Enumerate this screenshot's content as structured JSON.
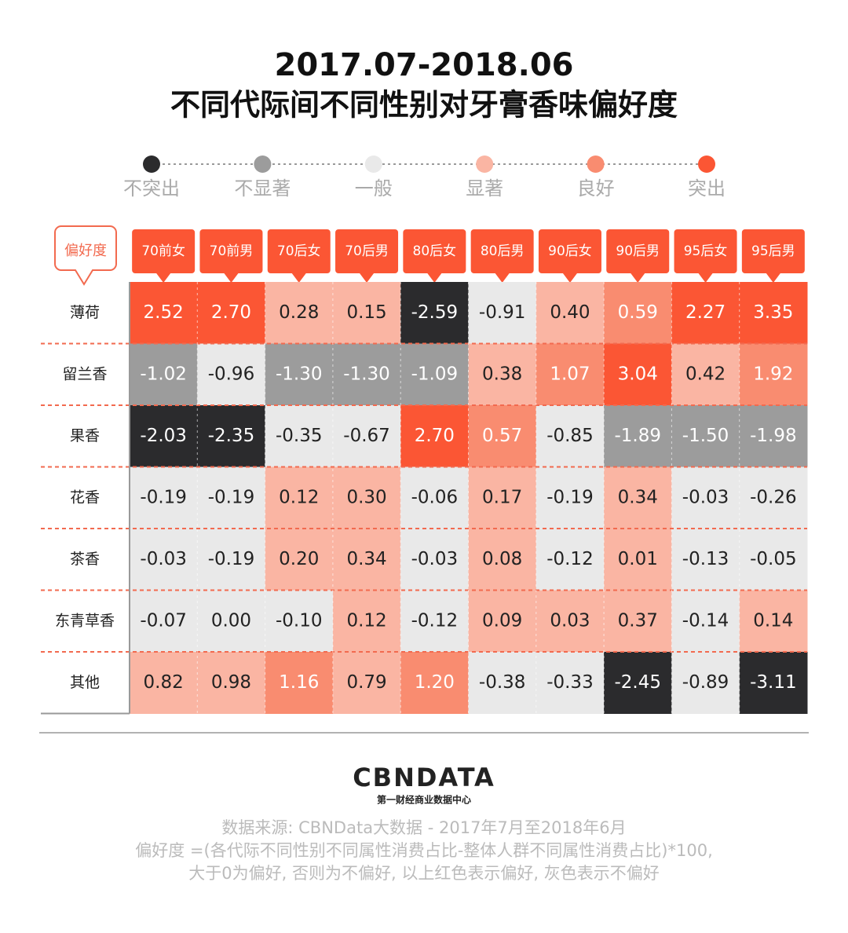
{
  "header": {
    "title_line1": "2017.07-2018.06",
    "title_line2": "不同代际间不同性别对牙膏香味偏好度"
  },
  "legend": [
    {
      "name": "不突出",
      "color": "#2b2b2d",
      "text_color": "#ffffff"
    },
    {
      "name": "不显著",
      "color": "#9c9c9c",
      "text_color": "#ffffff"
    },
    {
      "name": "一般",
      "color": "#e9e9e9",
      "text_color": "#222222"
    },
    {
      "name": "显著",
      "color": "#fab5a3",
      "text_color": "#222222"
    },
    {
      "name": "良好",
      "color": "#f98c70",
      "text_color": "#ffffff"
    },
    {
      "name": "突出",
      "color": "#fb5634",
      "text_color": "#ffffff"
    }
  ],
  "table": {
    "corner": "偏好度",
    "columns": [
      "70前女",
      "70前男",
      "70后女",
      "70后男",
      "80后女",
      "80后男",
      "90后女",
      "90后男",
      "95后女",
      "95后男"
    ],
    "rows": [
      {
        "label": "薄荷",
        "cells": [
          "2.52",
          "2.70",
          "0.28",
          "0.15",
          "-2.59",
          "-0.91",
          "0.40",
          "0.59",
          "2.27",
          "3.35"
        ],
        "colors": [
          "#fb5634",
          "#fb5634",
          "#fab5a3",
          "#fab5a3",
          "#2b2b2d",
          "#e9e9e9",
          "#fab5a3",
          "#f98c70",
          "#fb5634",
          "#fb5634"
        ]
      },
      {
        "label": "留兰香",
        "cells": [
          "-1.02",
          "-0.96",
          "-1.30",
          "-1.30",
          "-1.09",
          "0.38",
          "1.07",
          "3.04",
          "0.42",
          "1.92"
        ],
        "colors": [
          "#9c9c9c",
          "#e9e9e9",
          "#9c9c9c",
          "#9c9c9c",
          "#9c9c9c",
          "#fab5a3",
          "#f98c70",
          "#fb5634",
          "#fab5a3",
          "#f98c70"
        ]
      },
      {
        "label": "果香",
        "cells": [
          "-2.03",
          "-2.35",
          "-0.35",
          "-0.67",
          "2.70",
          "0.57",
          "-0.85",
          "-1.89",
          "-1.50",
          "-1.98"
        ],
        "colors": [
          "#2b2b2d",
          "#2b2b2d",
          "#e9e9e9",
          "#e9e9e9",
          "#fb5634",
          "#f98c70",
          "#e9e9e9",
          "#9c9c9c",
          "#9c9c9c",
          "#9c9c9c"
        ]
      },
      {
        "label": "花香",
        "cells": [
          "-0.19",
          "-0.19",
          "0.12",
          "0.30",
          "-0.06",
          "0.17",
          "-0.19",
          "0.34",
          "-0.03",
          "-0.26"
        ],
        "colors": [
          "#e9e9e9",
          "#e9e9e9",
          "#fab5a3",
          "#fab5a3",
          "#e9e9e9",
          "#fab5a3",
          "#e9e9e9",
          "#fab5a3",
          "#e9e9e9",
          "#e9e9e9"
        ]
      },
      {
        "label": "茶香",
        "cells": [
          "-0.03",
          "-0.19",
          "0.20",
          "0.34",
          "-0.03",
          "0.08",
          "-0.12",
          "0.01",
          "-0.13",
          "-0.05"
        ],
        "colors": [
          "#e9e9e9",
          "#e9e9e9",
          "#fab5a3",
          "#fab5a3",
          "#e9e9e9",
          "#fab5a3",
          "#e9e9e9",
          "#fab5a3",
          "#e9e9e9",
          "#e9e9e9"
        ]
      },
      {
        "label": "东青草香",
        "cells": [
          "-0.07",
          "0.00",
          "-0.10",
          "0.12",
          "-0.12",
          "0.09",
          "0.03",
          "0.37",
          "-0.14",
          "0.14"
        ],
        "colors": [
          "#e9e9e9",
          "#e9e9e9",
          "#e9e9e9",
          "#fab5a3",
          "#e9e9e9",
          "#fab5a3",
          "#fab5a3",
          "#fab5a3",
          "#e9e9e9",
          "#fab5a3"
        ]
      },
      {
        "label": "其他",
        "cells": [
          "0.82",
          "0.98",
          "1.16",
          "0.79",
          "1.20",
          "-0.38",
          "-0.33",
          "-2.45",
          "-0.89",
          "-3.11"
        ],
        "colors": [
          "#fab5a3",
          "#fab5a3",
          "#f98c70",
          "#fab5a3",
          "#f98c70",
          "#e9e9e9",
          "#e9e9e9",
          "#2b2b2d",
          "#e9e9e9",
          "#2b2b2d"
        ]
      }
    ]
  },
  "footer": {
    "logo": "CBNDATA",
    "logo_sub": "第一财经商业数据中心",
    "notes": [
      "数据来源: CBNData大数据 - 2017年7月至2018年6月",
      "偏好度 =(各代际不同性别不同属性消费占比-整体人群不同属性消费占比)*100,",
      "大于0为偏好, 否则为不偏好, 以上红色表示偏好, 灰色表示不偏好"
    ]
  }
}
